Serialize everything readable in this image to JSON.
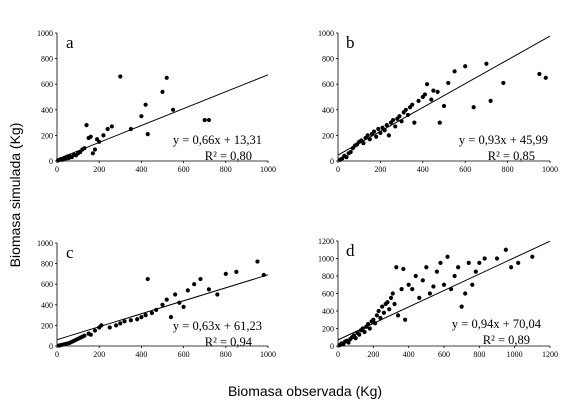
{
  "figure": {
    "ylabel": "Biomasa simulada (Kg)",
    "xlabel": "Biomasa observada (Kg)"
  },
  "chart_data": [
    {
      "type": "scatter",
      "panel": "a",
      "title": "",
      "xlim": [
        0,
        1000
      ],
      "ylim": [
        0,
        1000
      ],
      "xticks": [
        0,
        200,
        400,
        600,
        800,
        1000
      ],
      "yticks": [
        0,
        200,
        400,
        600,
        800,
        1000
      ],
      "equation": "y = 0,66x + 13,31",
      "r2": "R² = 0,80",
      "fit": {
        "slope": 0.66,
        "intercept": 13.31
      },
      "points": [
        [
          5,
          5
        ],
        [
          10,
          8
        ],
        [
          15,
          12
        ],
        [
          20,
          15
        ],
        [
          25,
          10
        ],
        [
          30,
          20
        ],
        [
          35,
          25
        ],
        [
          40,
          18
        ],
        [
          45,
          30
        ],
        [
          50,
          35
        ],
        [
          55,
          22
        ],
        [
          60,
          40
        ],
        [
          70,
          30
        ],
        [
          80,
          50
        ],
        [
          90,
          45
        ],
        [
          100,
          60
        ],
        [
          110,
          70
        ],
        [
          120,
          90
        ],
        [
          130,
          100
        ],
        [
          140,
          280
        ],
        [
          150,
          180
        ],
        [
          160,
          190
        ],
        [
          170,
          60
        ],
        [
          180,
          90
        ],
        [
          190,
          170
        ],
        [
          200,
          150
        ],
        [
          220,
          200
        ],
        [
          240,
          250
        ],
        [
          260,
          270
        ],
        [
          300,
          660
        ],
        [
          350,
          250
        ],
        [
          400,
          350
        ],
        [
          420,
          440
        ],
        [
          430,
          210
        ],
        [
          500,
          540
        ],
        [
          520,
          650
        ],
        [
          550,
          400
        ],
        [
          700,
          320
        ],
        [
          720,
          320
        ]
      ]
    },
    {
      "type": "scatter",
      "panel": "b",
      "title": "",
      "xlim": [
        0,
        1000
      ],
      "ylim": [
        0,
        1000
      ],
      "xticks": [
        0,
        200,
        400,
        600,
        800,
        1000
      ],
      "yticks": [
        0,
        200,
        400,
        600,
        800,
        1000
      ],
      "equation": "y = 0,93x + 45,99",
      "r2": "R² = 0,85",
      "fit": {
        "slope": 0.93,
        "intercept": 45.99
      },
      "points": [
        [
          10,
          10
        ],
        [
          20,
          20
        ],
        [
          30,
          40
        ],
        [
          40,
          30
        ],
        [
          50,
          60
        ],
        [
          60,
          70
        ],
        [
          70,
          100
        ],
        [
          80,
          120
        ],
        [
          90,
          130
        ],
        [
          100,
          150
        ],
        [
          110,
          160
        ],
        [
          120,
          140
        ],
        [
          130,
          180
        ],
        [
          140,
          200
        ],
        [
          150,
          170
        ],
        [
          160,
          210
        ],
        [
          170,
          230
        ],
        [
          180,
          190
        ],
        [
          190,
          250
        ],
        [
          200,
          220
        ],
        [
          210,
          260
        ],
        [
          220,
          240
        ],
        [
          230,
          280
        ],
        [
          240,
          200
        ],
        [
          250,
          300
        ],
        [
          260,
          320
        ],
        [
          270,
          270
        ],
        [
          280,
          330
        ],
        [
          290,
          350
        ],
        [
          300,
          310
        ],
        [
          310,
          380
        ],
        [
          320,
          400
        ],
        [
          330,
          360
        ],
        [
          340,
          420
        ],
        [
          350,
          440
        ],
        [
          360,
          300
        ],
        [
          380,
          470
        ],
        [
          400,
          500
        ],
        [
          410,
          520
        ],
        [
          420,
          600
        ],
        [
          440,
          480
        ],
        [
          450,
          550
        ],
        [
          470,
          540
        ],
        [
          480,
          300
        ],
        [
          500,
          430
        ],
        [
          520,
          610
        ],
        [
          550,
          700
        ],
        [
          600,
          740
        ],
        [
          640,
          420
        ],
        [
          700,
          760
        ],
        [
          720,
          470
        ],
        [
          780,
          610
        ],
        [
          950,
          680
        ],
        [
          980,
          650
        ]
      ]
    },
    {
      "type": "scatter",
      "panel": "c",
      "title": "",
      "xlim": [
        0,
        1000
      ],
      "ylim": [
        0,
        1000
      ],
      "xticks": [
        0,
        200,
        400,
        600,
        800,
        1000
      ],
      "yticks": [
        0,
        200,
        400,
        600,
        800,
        1000
      ],
      "equation": "y = 0,63x + 61,23",
      "r2": "R² = 0,94",
      "fit": {
        "slope": 0.63,
        "intercept": 61.23
      },
      "points": [
        [
          10,
          5
        ],
        [
          20,
          10
        ],
        [
          30,
          15
        ],
        [
          40,
          20
        ],
        [
          50,
          25
        ],
        [
          60,
          30
        ],
        [
          70,
          40
        ],
        [
          80,
          50
        ],
        [
          90,
          60
        ],
        [
          100,
          70
        ],
        [
          110,
          80
        ],
        [
          120,
          90
        ],
        [
          130,
          100
        ],
        [
          150,
          120
        ],
        [
          160,
          110
        ],
        [
          180,
          150
        ],
        [
          200,
          180
        ],
        [
          210,
          200
        ],
        [
          250,
          180
        ],
        [
          280,
          200
        ],
        [
          300,
          220
        ],
        [
          320,
          240
        ],
        [
          350,
          250
        ],
        [
          380,
          260
        ],
        [
          400,
          280
        ],
        [
          420,
          300
        ],
        [
          430,
          650
        ],
        [
          450,
          320
        ],
        [
          470,
          350
        ],
        [
          500,
          400
        ],
        [
          520,
          450
        ],
        [
          540,
          280
        ],
        [
          560,
          500
        ],
        [
          580,
          420
        ],
        [
          600,
          380
        ],
        [
          620,
          540
        ],
        [
          650,
          600
        ],
        [
          680,
          650
        ],
        [
          720,
          550
        ],
        [
          760,
          500
        ],
        [
          800,
          700
        ],
        [
          850,
          720
        ],
        [
          950,
          820
        ],
        [
          980,
          690
        ]
      ]
    },
    {
      "type": "scatter",
      "panel": "d",
      "title": "",
      "xlim": [
        0,
        1200
      ],
      "ylim": [
        0,
        1200
      ],
      "xticks": [
        0,
        200,
        400,
        600,
        800,
        1000,
        1200
      ],
      "yticks": [
        0,
        200,
        400,
        600,
        800,
        1000,
        1200
      ],
      "equation": "y = 0,94x + 70,04",
      "r2": "R² = 0,89",
      "fit": {
        "slope": 0.94,
        "intercept": 70.04
      },
      "points": [
        [
          10,
          10
        ],
        [
          20,
          30
        ],
        [
          30,
          20
        ],
        [
          40,
          50
        ],
        [
          50,
          60
        ],
        [
          60,
          40
        ],
        [
          70,
          80
        ],
        [
          80,
          100
        ],
        [
          90,
          120
        ],
        [
          100,
          90
        ],
        [
          110,
          150
        ],
        [
          120,
          130
        ],
        [
          130,
          180
        ],
        [
          140,
          200
        ],
        [
          150,
          160
        ],
        [
          160,
          220
        ],
        [
          170,
          250
        ],
        [
          180,
          200
        ],
        [
          190,
          280
        ],
        [
          200,
          300
        ],
        [
          210,
          260
        ],
        [
          220,
          350
        ],
        [
          230,
          400
        ],
        [
          240,
          320
        ],
        [
          250,
          450
        ],
        [
          260,
          380
        ],
        [
          270,
          480
        ],
        [
          280,
          500
        ],
        [
          290,
          420
        ],
        [
          300,
          550
        ],
        [
          310,
          600
        ],
        [
          320,
          480
        ],
        [
          330,
          900
        ],
        [
          340,
          350
        ],
        [
          360,
          650
        ],
        [
          370,
          880
        ],
        [
          380,
          300
        ],
        [
          400,
          700
        ],
        [
          420,
          650
        ],
        [
          440,
          800
        ],
        [
          460,
          550
        ],
        [
          480,
          750
        ],
        [
          500,
          900
        ],
        [
          520,
          600
        ],
        [
          540,
          680
        ],
        [
          560,
          850
        ],
        [
          580,
          950
        ],
        [
          600,
          700
        ],
        [
          620,
          1020
        ],
        [
          640,
          650
        ],
        [
          660,
          800
        ],
        [
          680,
          900
        ],
        [
          700,
          450
        ],
        [
          720,
          600
        ],
        [
          740,
          950
        ],
        [
          760,
          700
        ],
        [
          780,
          850
        ],
        [
          800,
          950
        ],
        [
          830,
          1000
        ],
        [
          900,
          1000
        ],
        [
          950,
          1100
        ],
        [
          980,
          900
        ],
        [
          1020,
          950
        ],
        [
          1100,
          1020
        ]
      ]
    }
  ]
}
